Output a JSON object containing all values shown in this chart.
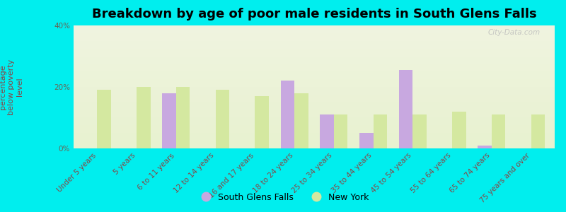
{
  "title": "Breakdown by age of poor male residents in South Glens Falls",
  "ylabel": "percentage\nbelow poverty\nlevel",
  "categories": [
    "Under 5 years",
    "5 years",
    "6 to 11 years",
    "12 to 14 years",
    "16 and 17 years",
    "18 to 24 years",
    "25 to 34 years",
    "35 to 44 years",
    "45 to 54 years",
    "55 to 64 years",
    "65 to 74 years",
    "75 years and over"
  ],
  "sgf_values": [
    0,
    0,
    18.0,
    0,
    0,
    22.0,
    11.0,
    5.0,
    25.5,
    0,
    1.0,
    0
  ],
  "ny_values": [
    19.0,
    20.0,
    20.0,
    19.0,
    17.0,
    18.0,
    11.0,
    11.0,
    11.0,
    12.0,
    11.0,
    11.0
  ],
  "sgf_color": "#c8a8e0",
  "ny_color": "#d4e8a0",
  "background_color": "#00eeee",
  "plot_bg_gradient_top": "#f0f4e0",
  "plot_bg_gradient_bottom": "#e8f2d0",
  "ylim": [
    0,
    40
  ],
  "yticks": [
    0,
    20,
    40
  ],
  "ytick_labels": [
    "0%",
    "20%",
    "40%"
  ],
  "bar_width": 0.35,
  "title_fontsize": 13,
  "axis_label_fontsize": 8,
  "tick_fontsize": 7.5,
  "legend_labels": [
    "South Glens Falls",
    "New York"
  ],
  "watermark": "City-Data.com"
}
